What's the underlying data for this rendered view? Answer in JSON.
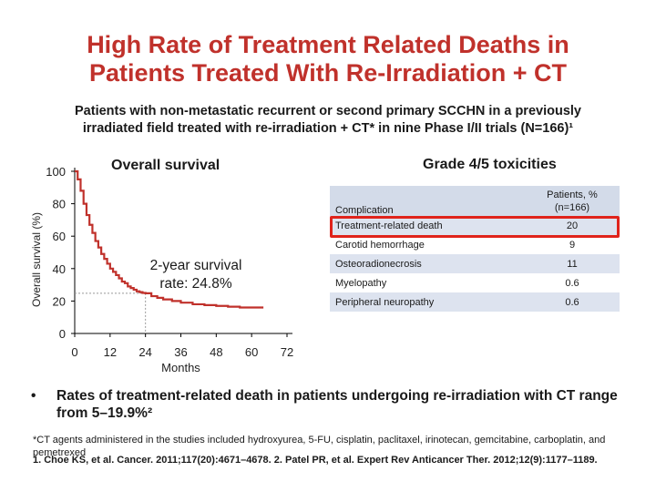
{
  "slide": {
    "title_line1": "High Rate of Treatment Related Deaths in",
    "title_line2": "Patients Treated With Re-Irradiation + CT",
    "subtitle_line1": "Patients with non-metastatic recurrent or second primary SCCHN in a previously",
    "subtitle_line2": "irradiated field treated with re-irradiation + CT* in nine Phase I/II trials (N=166)¹",
    "bullet": "Rates of treatment-related death in patients undergoing re-irradiation with CT range from 5–19.9%²",
    "footnote_ct": "*CT agents administered in the studies included hydroxyurea, 5-FU, cisplatin, paclitaxel, irinotecan, gemcitabine, carboplatin, and pemetrexed",
    "footnote_refs": "1. Choe KS, et al. Cancer. 2011;117(20):4671–4678. 2. Patel PR, et al. Expert Rev Anticancer Ther. 2012;12(9):1177–1189."
  },
  "chart_data": {
    "type": "line",
    "title": "Overall survival",
    "xlabel": "Months",
    "ylabel": "Overall survival (%)",
    "xlim": [
      0,
      72
    ],
    "ylim": [
      0,
      100
    ],
    "xticks": [
      0,
      12,
      24,
      36,
      48,
      60,
      72
    ],
    "yticks": [
      0,
      20,
      40,
      60,
      80,
      100
    ],
    "annotation": {
      "text_line1": "2-year survival",
      "text_line2": "rate: 24.8%",
      "x": 24,
      "y": 24.8
    },
    "series": [
      {
        "name": "Overall survival",
        "color": "#c0312b",
        "x": [
          0,
          1,
          2,
          3,
          4,
          5,
          6,
          7,
          8,
          9,
          10,
          11,
          12,
          13,
          14,
          15,
          16,
          17,
          18,
          19,
          20,
          21,
          22,
          23,
          24,
          26,
          28,
          30,
          33,
          36,
          40,
          44,
          48,
          52,
          56,
          60,
          64
        ],
        "y": [
          100,
          95,
          88,
          80,
          73,
          67,
          62,
          57,
          53,
          49,
          46,
          43,
          40,
          38,
          36,
          34,
          32,
          31,
          29,
          28,
          27,
          26,
          25.5,
          25,
          24.8,
          23,
          22,
          21,
          20,
          19,
          18,
          17.5,
          17,
          16.5,
          16,
          16,
          16
        ]
      }
    ]
  },
  "toxicity_table": {
    "title": "Grade 4/5 toxicities",
    "col_complication": "Complication",
    "col_patients_line1": "Patients, %",
    "col_patients_line2": "(n=166)",
    "rows": [
      {
        "complication": "Treatment-related death",
        "value": "20"
      },
      {
        "complication": "Carotid hemorrhage",
        "value": "9"
      },
      {
        "complication": "Osteoradionecrosis",
        "value": "11"
      },
      {
        "complication": "Myelopathy",
        "value": "0.6"
      },
      {
        "complication": "Peripheral neuropathy",
        "value": "0.6"
      }
    ],
    "highlight_color": "#e0231b"
  }
}
